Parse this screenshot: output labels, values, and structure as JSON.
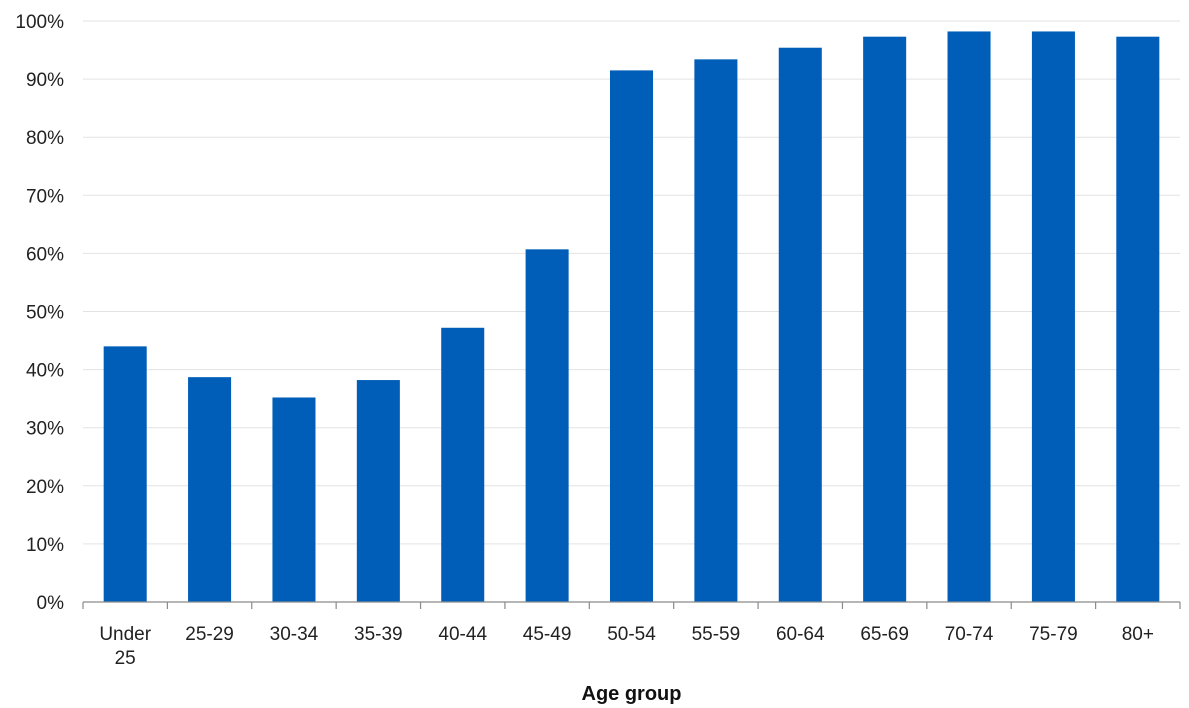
{
  "chart_data": {
    "type": "bar",
    "categories": [
      "Under 25",
      "25-29",
      "30-34",
      "35-39",
      "40-44",
      "45-49",
      "50-54",
      "55-59",
      "60-64",
      "65-69",
      "70-74",
      "75-79",
      "80+"
    ],
    "values": [
      44,
      38.7,
      35.2,
      38.2,
      47.2,
      60.7,
      91.5,
      93.4,
      95.4,
      97.3,
      98.2,
      98.2,
      97.3
    ],
    "xlabel": "Age group",
    "ylabel": "",
    "ylim": [
      0,
      100
    ],
    "yticks": [
      "0%",
      "10%",
      "20%",
      "30%",
      "40%",
      "50%",
      "60%",
      "70%",
      "80%",
      "90%",
      "100%"
    ],
    "grid": true,
    "bar_color": "#005EB8"
  }
}
